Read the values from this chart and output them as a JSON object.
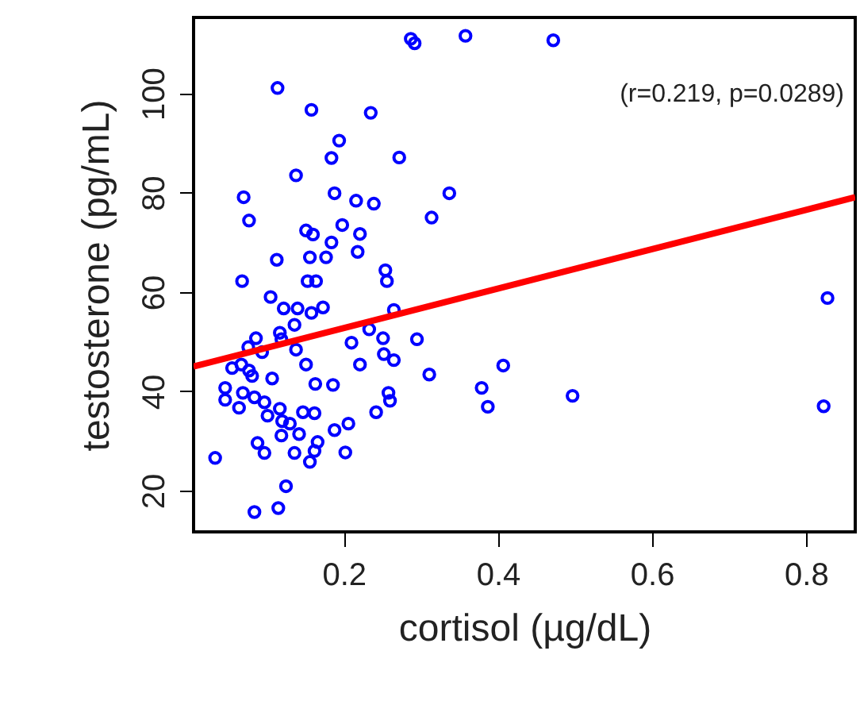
{
  "chart_data": {
    "type": "scatter",
    "xlabel": "cortisol (µg/dL)",
    "ylabel": "testosterone (pg/mL)",
    "annotations": [
      "(r=0.219, p=0.0289)"
    ],
    "xlim": [
      0.005,
      0.864
    ],
    "ylim": [
      11.7,
      115.3
    ],
    "xticks": [
      0.2,
      0.4,
      0.6,
      0.8
    ],
    "yticks": [
      20,
      40,
      60,
      80,
      100
    ],
    "grid": false,
    "marker": "circle",
    "series": [
      {
        "color": "#0000ff",
        "x": [
          0.287,
          0.292,
          0.358,
          0.472,
          0.114,
          0.158,
          0.235,
          0.194,
          0.184,
          0.272,
          0.138,
          0.07,
          0.077,
          0.188,
          0.216,
          0.239,
          0.337,
          0.314,
          0.151,
          0.16,
          0.198,
          0.221,
          0.184,
          0.218,
          0.177,
          0.156,
          0.113,
          0.254,
          0.256,
          0.068,
          0.153,
          0.164,
          0.105,
          0.122,
          0.14,
          0.158,
          0.173,
          0.136,
          0.265,
          0.086,
          0.076,
          0.094,
          0.117,
          0.119,
          0.138,
          0.21,
          0.233,
          0.251,
          0.295,
          0.252,
          0.265,
          0.221,
          0.151,
          0.055,
          0.067,
          0.077,
          0.081,
          0.107,
          0.163,
          0.186,
          0.311,
          0.407,
          0.046,
          0.046,
          0.069,
          0.084,
          0.064,
          0.097,
          0.101,
          0.117,
          0.12,
          0.13,
          0.119,
          0.142,
          0.147,
          0.162,
          0.258,
          0.26,
          0.242,
          0.206,
          0.188,
          0.202,
          0.166,
          0.162,
          0.156,
          0.136,
          0.088,
          0.097,
          0.033,
          0.125,
          0.084,
          0.115,
          0.379,
          0.387,
          0.497,
          0.828,
          0.823
        ],
        "values": [
          111.0,
          110.1,
          111.6,
          110.7,
          101.1,
          96.7,
          96.1,
          90.5,
          87.0,
          87.1,
          83.5,
          79.1,
          74.4,
          79.9,
          78.4,
          77.8,
          79.9,
          75.0,
          72.4,
          71.6,
          73.5,
          71.7,
          70.0,
          68.1,
          67.0,
          67.0,
          66.5,
          64.4,
          62.2,
          62.2,
          62.2,
          62.2,
          59.0,
          56.7,
          56.7,
          55.8,
          56.9,
          53.4,
          56.4,
          50.7,
          48.9,
          47.9,
          51.8,
          50.5,
          48.4,
          49.8,
          52.5,
          50.7,
          50.5,
          47.5,
          46.3,
          45.4,
          45.4,
          44.7,
          45.4,
          44.2,
          43.1,
          42.6,
          41.5,
          41.3,
          43.4,
          45.2,
          40.7,
          38.3,
          39.7,
          38.8,
          36.7,
          37.8,
          35.1,
          36.5,
          34.0,
          33.5,
          31.1,
          31.4,
          35.8,
          35.6,
          39.7,
          38.1,
          35.8,
          33.5,
          32.2,
          27.7,
          29.8,
          28.0,
          25.8,
          27.6,
          29.6,
          27.6,
          26.6,
          20.9,
          15.7,
          16.5,
          40.7,
          36.9,
          39.1,
          58.8,
          37.0
        ]
      },
      {
        "type": "line",
        "color": "#ff0000",
        "marker": "none",
        "line_style": "solid",
        "x": [
          0.005,
          0.864
        ],
        "values": [
          45.0,
          79.1
        ]
      }
    ]
  }
}
